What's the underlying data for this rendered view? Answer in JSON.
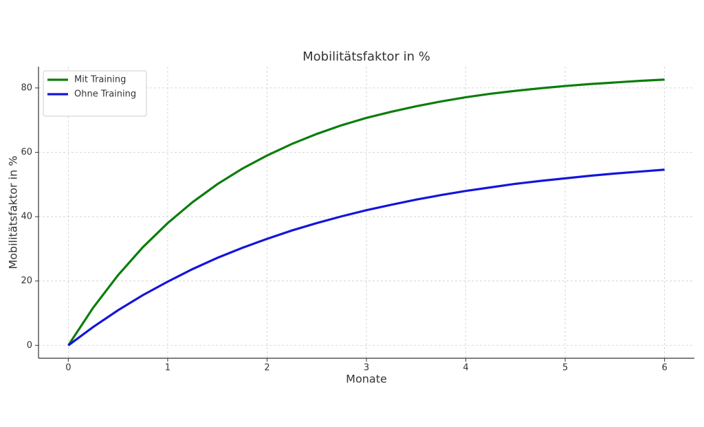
{
  "chart_data": {
    "type": "line",
    "title": "Mobilitätsfaktor in %",
    "xlabel": "Monate",
    "ylabel": "Mobilitätsfaktor in %",
    "x": [
      0,
      0.25,
      0.5,
      0.75,
      1,
      1.25,
      1.5,
      1.75,
      2,
      2.25,
      2.5,
      2.75,
      3,
      3.25,
      3.5,
      3.75,
      4,
      4.25,
      4.5,
      4.75,
      5,
      5.25,
      5.5,
      5.75,
      6
    ],
    "series": [
      {
        "name": "Mit Training",
        "color": "#0a7d0a",
        "values": [
          0,
          11.7,
          21.8,
          30.5,
          38.0,
          44.5,
          50.1,
          54.9,
          59.0,
          62.6,
          65.7,
          68.4,
          70.7,
          72.6,
          74.3,
          75.8,
          77.1,
          78.2,
          79.1,
          79.9,
          80.6,
          81.2,
          81.7,
          82.2,
          82.6
        ]
      },
      {
        "name": "Ohne Training",
        "color": "#1414dc",
        "values": [
          0,
          5.7,
          10.9,
          15.6,
          19.8,
          23.7,
          27.2,
          30.3,
          33.1,
          35.7,
          38.0,
          40.1,
          42.0,
          43.7,
          45.3,
          46.7,
          48.0,
          49.1,
          50.2,
          51.1,
          51.9,
          52.7,
          53.4,
          54.0,
          54.6
        ]
      }
    ],
    "xlim": [
      -0.3,
      6.3
    ],
    "xticks": [
      0,
      1,
      2,
      3,
      4,
      5,
      6
    ],
    "ylim": [
      -4,
      86.6
    ],
    "yticks": [
      0,
      20,
      40,
      60,
      80
    ],
    "grid": true,
    "legend": "upper-left"
  }
}
